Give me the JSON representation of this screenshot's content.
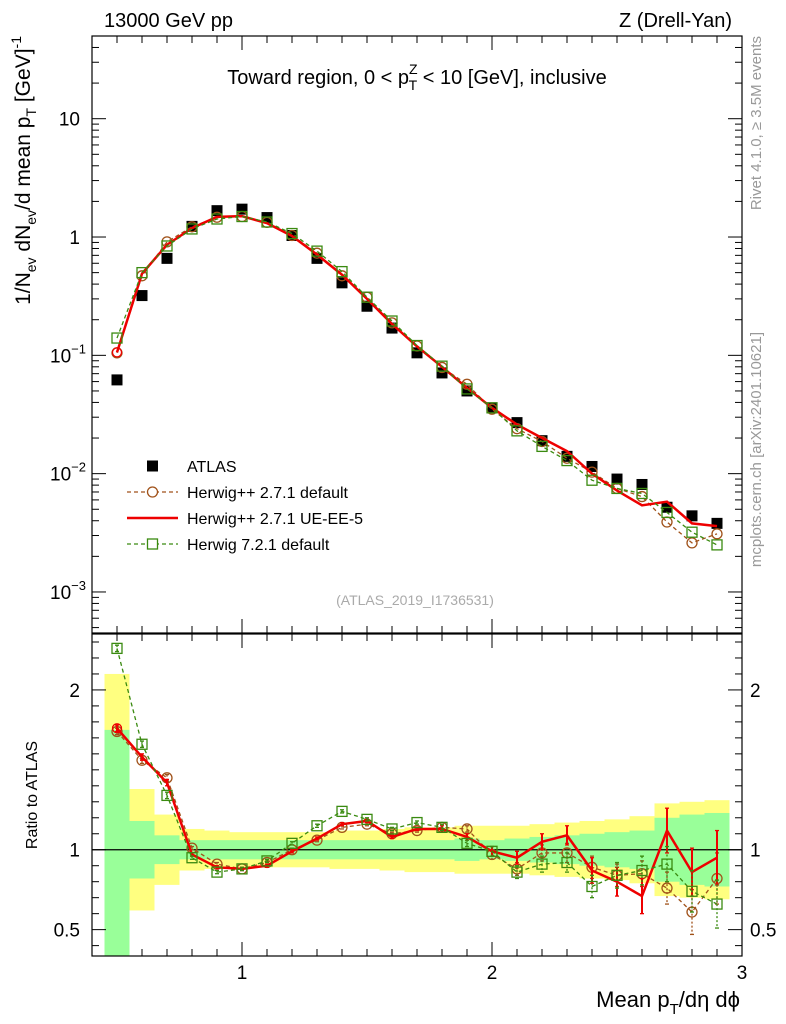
{
  "header": {
    "left": "13000 GeV pp",
    "right": "Z (Drell-Yan)"
  },
  "plot_title": {
    "pre": "Toward region, 0 < p",
    "sup": "Z",
    "sub": "T",
    "post": " < 10 [GeV], inclusive"
  },
  "side_text": {
    "rivet": "Rivet 4.1.0, ≥ 3.5M events",
    "mcplots": "mcplots.cern.ch [arXiv:2401.10621]"
  },
  "watermark": "(ATLAS_2019_I1736531)",
  "ylabel_main": {
    "a": "1/N",
    "a_sub": "ev",
    "b": " dN",
    "b_sub": "ev",
    "c": "/d mean p",
    "c_sub": "T",
    "d": " [GeV]",
    "d_sup": "-1"
  },
  "ylabel_ratio": "Ratio to ATLAS",
  "xlabel": {
    "a": "Mean p",
    "a_sub": "T",
    "b": "/dη dϕ"
  },
  "main_tick_labels": {
    "y": [
      {
        "value": 10,
        "mant": "10",
        "exp": ""
      },
      {
        "value": 1,
        "mant": "1",
        "exp": ""
      },
      {
        "value": 0.1,
        "mant": "10",
        "exp": "−1"
      },
      {
        "value": 0.01,
        "mant": "10",
        "exp": "−2"
      },
      {
        "value": 0.001,
        "mant": "10",
        "exp": "−3"
      }
    ]
  },
  "legend": [
    {
      "label": "ATLAS",
      "color": "#000000",
      "marker": "square-filled",
      "line": "none"
    },
    {
      "label": "Herwig++ 2.7.1 default",
      "color": "#a0521a",
      "marker": "circle-open",
      "line": "dashed"
    },
    {
      "label": "Herwig++ 2.7.1 UE-EE-5",
      "color": "#ee0000",
      "marker": "none",
      "line": "solid"
    },
    {
      "label": "Herwig 7.2.1 default",
      "color": "#3a8a10",
      "marker": "square-open",
      "line": "dashed"
    }
  ],
  "chart_data": [
    {
      "type": "scatter",
      "name": "main",
      "yscale": "log",
      "xlim": [
        0.4,
        3.0
      ],
      "ylim": [
        0.00045,
        50
      ],
      "x": [
        0.5,
        0.6,
        0.7,
        0.8,
        0.9,
        1.0,
        1.1,
        1.2,
        1.3,
        1.4,
        1.5,
        1.6,
        1.7,
        1.8,
        1.9,
        2.0,
        2.1,
        2.2,
        2.3,
        2.4,
        2.5,
        2.6,
        2.7,
        2.8,
        2.9
      ],
      "series": [
        {
          "name": "ATLAS",
          "values": [
            0.062,
            0.32,
            0.66,
            1.23,
            1.67,
            1.72,
            1.46,
            1.03,
            0.66,
            0.41,
            0.26,
            0.17,
            0.105,
            0.071,
            0.05,
            0.036,
            0.027,
            0.019,
            0.014,
            0.0115,
            0.009,
            0.0081,
            0.0052,
            0.0044,
            0.0038
          ]
        },
        {
          "name": "Herwig++ 2.7.1 default",
          "values": [
            0.105,
            0.47,
            0.91,
            1.22,
            1.47,
            1.49,
            1.33,
            1.03,
            0.73,
            0.47,
            0.31,
            0.188,
            0.12,
            0.079,
            0.057,
            0.035,
            0.024,
            0.0187,
            0.0135,
            0.0103,
            0.0075,
            0.0064,
            0.0039,
            0.0026,
            0.0031
          ]
        },
        {
          "name": "Herwig++ 2.7.1 UE-EE-5",
          "values": [
            0.106,
            0.49,
            0.86,
            1.19,
            1.48,
            1.5,
            1.31,
            1.02,
            0.71,
            0.48,
            0.3,
            0.184,
            0.119,
            0.08,
            0.053,
            0.036,
            0.026,
            0.02,
            0.0155,
            0.01,
            0.0072,
            0.0054,
            0.0058,
            0.0038,
            0.0036
          ]
        },
        {
          "name": "Herwig 7.2.1 default",
          "values": [
            0.14,
            0.5,
            0.84,
            1.17,
            1.42,
            1.49,
            1.34,
            1.07,
            0.76,
            0.51,
            0.31,
            0.195,
            0.121,
            0.081,
            0.052,
            0.036,
            0.023,
            0.017,
            0.0129,
            0.0088,
            0.0075,
            0.0068,
            0.0047,
            0.0032,
            0.0025
          ]
        }
      ]
    },
    {
      "type": "scatter",
      "name": "ratio",
      "yscale": "linear",
      "xlim": [
        0.4,
        3.0
      ],
      "ylim": [
        0.335,
        2.35
      ],
      "ylabel": "Ratio to ATLAS",
      "xlabel": "Mean pT/dη dϕ",
      "x_ticks": [
        1,
        2,
        3
      ],
      "y_ticks": [
        0.5,
        1,
        2
      ],
      "reference_line": 1,
      "band_x_edges": [
        0.45,
        0.55,
        0.65,
        0.75,
        0.85,
        0.95,
        1.05,
        1.15,
        1.25,
        1.35,
        1.45,
        1.55,
        1.65,
        1.75,
        1.85,
        1.95,
        2.05,
        2.15,
        2.25,
        2.35,
        2.45,
        2.55,
        2.65,
        2.75,
        2.85,
        2.95
      ],
      "band_stat_syst": [
        0.75,
        0.18,
        0.09,
        0.06,
        0.06,
        0.06,
        0.06,
        0.06,
        0.06,
        0.06,
        0.06,
        0.06,
        0.06,
        0.06,
        0.07,
        0.06,
        0.07,
        0.08,
        0.09,
        0.1,
        0.11,
        0.12,
        0.2,
        0.22,
        0.23
      ],
      "band_total": [
        1.1,
        0.38,
        0.22,
        0.13,
        0.12,
        0.11,
        0.11,
        0.11,
        0.11,
        0.12,
        0.12,
        0.13,
        0.14,
        0.14,
        0.15,
        0.15,
        0.15,
        0.16,
        0.17,
        0.18,
        0.19,
        0.21,
        0.29,
        0.3,
        0.31
      ],
      "series": [
        {
          "name": "Herwig++ 2.7.1 default",
          "values": [
            1.74,
            1.56,
            1.45,
            1.01,
            0.91,
            0.88,
            0.92,
            1.0,
            1.06,
            1.14,
            1.16,
            1.1,
            1.12,
            1.14,
            1.13,
            0.97,
            0.88,
            0.98,
            0.98,
            0.89,
            0.84,
            0.85,
            0.76,
            0.61,
            0.82
          ],
          "errors": [
            0.02,
            0.02,
            0.02,
            0.01,
            0.01,
            0.01,
            0.01,
            0.01,
            0.01,
            0.01,
            0.01,
            0.01,
            0.01,
            0.02,
            0.02,
            0.03,
            0.04,
            0.05,
            0.06,
            0.07,
            0.07,
            0.08,
            0.1,
            0.14,
            0.16
          ]
        },
        {
          "name": "Herwig++ 2.7.1 UE-EE-5",
          "values": [
            1.76,
            1.58,
            1.42,
            0.97,
            0.89,
            0.88,
            0.9,
            0.99,
            1.07,
            1.16,
            1.18,
            1.08,
            1.13,
            1.13,
            1.08,
            0.99,
            0.95,
            1.05,
            1.09,
            0.87,
            0.8,
            0.71,
            1.12,
            0.86,
            0.95
          ],
          "errors": [
            0.02,
            0.02,
            0.02,
            0.01,
            0.01,
            0.01,
            0.01,
            0.01,
            0.01,
            0.01,
            0.01,
            0.01,
            0.01,
            0.02,
            0.02,
            0.03,
            0.04,
            0.05,
            0.06,
            0.08,
            0.09,
            0.11,
            0.14,
            0.15,
            0.17
          ]
        },
        {
          "name": "Herwig 7.2.1 default",
          "values": [
            2.26,
            1.66,
            1.34,
            0.95,
            0.86,
            0.88,
            0.93,
            1.04,
            1.15,
            1.24,
            1.19,
            1.13,
            1.17,
            1.14,
            1.04,
            0.99,
            0.86,
            0.91,
            0.92,
            0.77,
            0.84,
            0.87,
            0.91,
            0.74,
            0.66
          ],
          "errors": [
            0.02,
            0.02,
            0.02,
            0.01,
            0.01,
            0.01,
            0.01,
            0.01,
            0.01,
            0.01,
            0.01,
            0.01,
            0.01,
            0.02,
            0.02,
            0.03,
            0.04,
            0.05,
            0.06,
            0.07,
            0.08,
            0.09,
            0.11,
            0.13,
            0.15
          ]
        }
      ]
    }
  ]
}
